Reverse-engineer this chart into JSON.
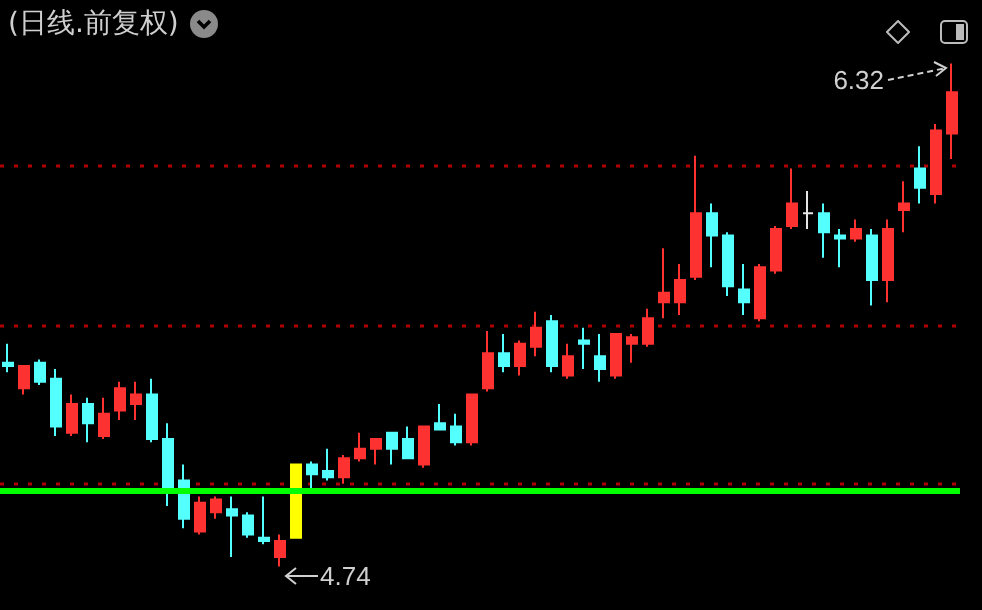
{
  "chart_data": {
    "type": "candlestick",
    "title": "(日线.前复权)",
    "categories": [
      null,
      null,
      null,
      null,
      null,
      null,
      null,
      null,
      null,
      null,
      null,
      null,
      null,
      null,
      null,
      null,
      null,
      null,
      null,
      null,
      null,
      null,
      null,
      null,
      null,
      null,
      null,
      null,
      null,
      null,
      null,
      null,
      null,
      null,
      null,
      null,
      null,
      null,
      null,
      null,
      null,
      null,
      null,
      null,
      null,
      null,
      null,
      null,
      null,
      null,
      null,
      null,
      null,
      null,
      null,
      null,
      null,
      null,
      null,
      null
    ],
    "ohlc": [
      [
        5.38,
        5.44,
        5.35,
        5.37
      ],
      [
        5.3,
        5.37,
        5.28,
        5.37
      ],
      [
        5.38,
        5.39,
        5.31,
        5.32
      ],
      [
        5.33,
        5.36,
        5.15,
        5.18
      ],
      [
        5.16,
        5.28,
        5.15,
        5.25
      ],
      [
        5.25,
        5.27,
        5.13,
        5.19
      ],
      [
        5.15,
        5.27,
        5.14,
        5.22
      ],
      [
        5.23,
        5.32,
        5.2,
        5.3
      ],
      [
        5.25,
        5.32,
        5.2,
        5.28
      ],
      [
        5.28,
        5.33,
        5.13,
        5.14
      ],
      [
        5.14,
        5.19,
        4.93,
        4.98
      ],
      [
        5.01,
        5.06,
        4.86,
        4.89
      ],
      [
        4.85,
        4.96,
        4.84,
        4.94
      ],
      [
        4.91,
        4.96,
        4.89,
        4.95
      ],
      [
        4.92,
        4.96,
        4.77,
        4.9
      ],
      [
        4.9,
        4.91,
        4.83,
        4.84
      ],
      [
        4.83,
        4.96,
        4.81,
        4.82
      ],
      [
        4.77,
        4.84,
        4.74,
        4.82
      ],
      [
        5.06,
        5.06,
        4.83,
        4.83
      ],
      [
        5.06,
        5.07,
        4.98,
        5.03
      ],
      [
        5.04,
        5.11,
        5.01,
        5.02
      ],
      [
        5.02,
        5.09,
        5.0,
        5.08
      ],
      [
        5.08,
        5.16,
        5.07,
        5.11
      ],
      [
        5.11,
        5.14,
        5.06,
        5.14
      ],
      [
        5.16,
        5.16,
        5.06,
        5.11
      ],
      [
        5.14,
        5.18,
        5.08,
        5.08
      ],
      [
        5.06,
        5.18,
        5.05,
        5.18
      ],
      [
        5.19,
        5.25,
        5.17,
        5.17
      ],
      [
        5.18,
        5.22,
        5.12,
        5.13
      ],
      [
        5.13,
        5.28,
        5.12,
        5.28
      ],
      [
        5.3,
        5.48,
        5.29,
        5.41
      ],
      [
        5.41,
        5.47,
        5.35,
        5.37
      ],
      [
        5.37,
        5.45,
        5.34,
        5.44
      ],
      [
        5.43,
        5.54,
        5.4,
        5.49
      ],
      [
        5.51,
        5.53,
        5.35,
        5.37
      ],
      [
        5.34,
        5.44,
        5.33,
        5.4
      ],
      [
        5.45,
        5.49,
        5.36,
        5.44
      ],
      [
        5.4,
        5.47,
        5.32,
        5.36
      ],
      [
        5.34,
        5.47,
        5.33,
        5.47
      ],
      [
        5.44,
        5.47,
        5.38,
        5.46
      ],
      [
        5.44,
        5.55,
        5.43,
        5.52
      ],
      [
        5.57,
        5.74,
        5.52,
        5.6
      ],
      [
        5.57,
        5.69,
        5.53,
        5.64
      ],
      [
        5.65,
        6.03,
        5.64,
        5.85
      ],
      [
        5.85,
        5.88,
        5.68,
        5.78
      ],
      [
        5.78,
        5.79,
        5.59,
        5.62
      ],
      [
        5.61,
        5.69,
        5.53,
        5.57
      ],
      [
        5.52,
        5.69,
        5.51,
        5.68
      ],
      [
        5.67,
        5.81,
        5.66,
        5.8
      ],
      [
        5.81,
        5.99,
        5.8,
        5.88
      ],
      [
        5.85,
        5.92,
        5.8,
        5.85
      ],
      [
        5.85,
        5.88,
        5.71,
        5.79
      ],
      [
        5.78,
        5.8,
        5.68,
        5.77
      ],
      [
        5.77,
        5.83,
        5.76,
        5.8
      ],
      [
        5.78,
        5.8,
        5.56,
        5.64
      ],
      [
        5.64,
        5.83,
        5.57,
        5.8
      ],
      [
        5.86,
        5.95,
        5.79,
        5.88
      ],
      [
        5.99,
        6.06,
        5.88,
        5.93
      ],
      [
        5.91,
        6.13,
        5.88,
        6.11
      ],
      [
        6.1,
        6.32,
        6.02,
        6.23
      ]
    ],
    "colors": [
      "#54ffff",
      "#ff3232",
      "#54ffff",
      "#54ffff",
      "#ff3232",
      "#54ffff",
      "#ff3232",
      "#ff3232",
      "#ff3232",
      "#54ffff",
      "#54ffff",
      "#54ffff",
      "#ff3232",
      "#ff3232",
      "#54ffff",
      "#54ffff",
      "#54ffff",
      "#ff3232",
      "#ffff00",
      "#54ffff",
      "#54ffff",
      "#ff3232",
      "#ff3232",
      "#ff3232",
      "#54ffff",
      "#54ffff",
      "#ff3232",
      "#54ffff",
      "#54ffff",
      "#ff3232",
      "#ff3232",
      "#54ffff",
      "#ff3232",
      "#ff3232",
      "#54ffff",
      "#ff3232",
      "#54ffff",
      "#54ffff",
      "#ff3232",
      "#ff3232",
      "#ff3232",
      "#ff3232",
      "#ff3232",
      "#ff3232",
      "#54ffff",
      "#54ffff",
      "#54ffff",
      "#ff3232",
      "#ff3232",
      "#ff3232",
      "#e6e6e6",
      "#54ffff",
      "#54ffff",
      "#ff3232",
      "#54ffff",
      "#ff3232",
      "#ff3232",
      "#54ffff",
      "#ff3232",
      "#ff3232"
    ],
    "yticks": [
      {
        "value": 5.0,
        "label": null
      },
      {
        "value": 5.5,
        "label": null
      },
      {
        "value": 6.0,
        "label": null
      }
    ],
    "grid": "y",
    "tick_labels": false,
    "ref_lines": [
      {
        "axis": "y",
        "value": 4.98,
        "label": null,
        "color": "#00ff00"
      }
    ],
    "annotations": [
      "6.32",
      "4.74"
    ]
  }
}
